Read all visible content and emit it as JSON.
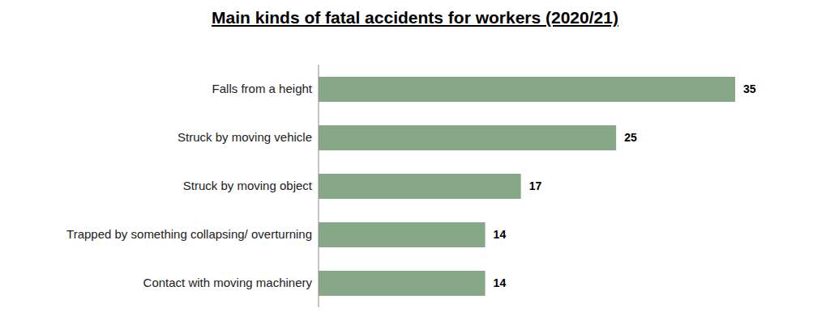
{
  "chart_data": {
    "type": "bar",
    "title": "Main kinds of fatal accidents for workers (2020/21)",
    "orientation": "horizontal",
    "categories": [
      "Falls from a height",
      "Struck by moving vehicle",
      "Struck by moving object",
      "Trapped by something collapsing/ overturning",
      "Contact with moving machinery"
    ],
    "values": [
      35,
      25,
      17,
      14,
      14
    ],
    "color": "#87a886",
    "data_labels": true,
    "tick_labels": "y",
    "grid": false
  }
}
